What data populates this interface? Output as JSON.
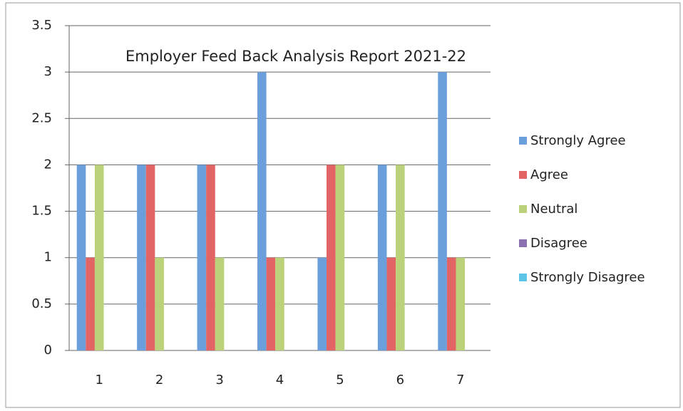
{
  "chart_data": {
    "type": "bar",
    "title": "Employer  Feed Back Analysis Report 2021-22",
    "categories": [
      "1",
      "2",
      "3",
      "4",
      "5",
      "6",
      "7"
    ],
    "series": [
      {
        "name": "Strongly Agree",
        "color": "#6a9fdc",
        "values": [
          2,
          2,
          2,
          3,
          1,
          2,
          3
        ]
      },
      {
        "name": "Agree",
        "color": "#e26464",
        "values": [
          1,
          2,
          2,
          1,
          2,
          1,
          1
        ]
      },
      {
        "name": "Neutral",
        "color": "#bcd27a",
        "values": [
          2,
          1,
          1,
          1,
          2,
          2,
          1
        ]
      },
      {
        "name": "Disagree",
        "color": "#8a72b0",
        "values": [
          0,
          0,
          0,
          0,
          0,
          0,
          0
        ]
      },
      {
        "name": "Strongly Disagree",
        "color": "#5cc4e4",
        "values": [
          0,
          0,
          0,
          0,
          0,
          0,
          0
        ]
      }
    ],
    "ylim": [
      0,
      3.5
    ],
    "yticks": [
      0,
      0.5,
      1,
      1.5,
      2,
      2.5,
      3,
      3.5
    ],
    "grid": true,
    "legend": "right"
  }
}
